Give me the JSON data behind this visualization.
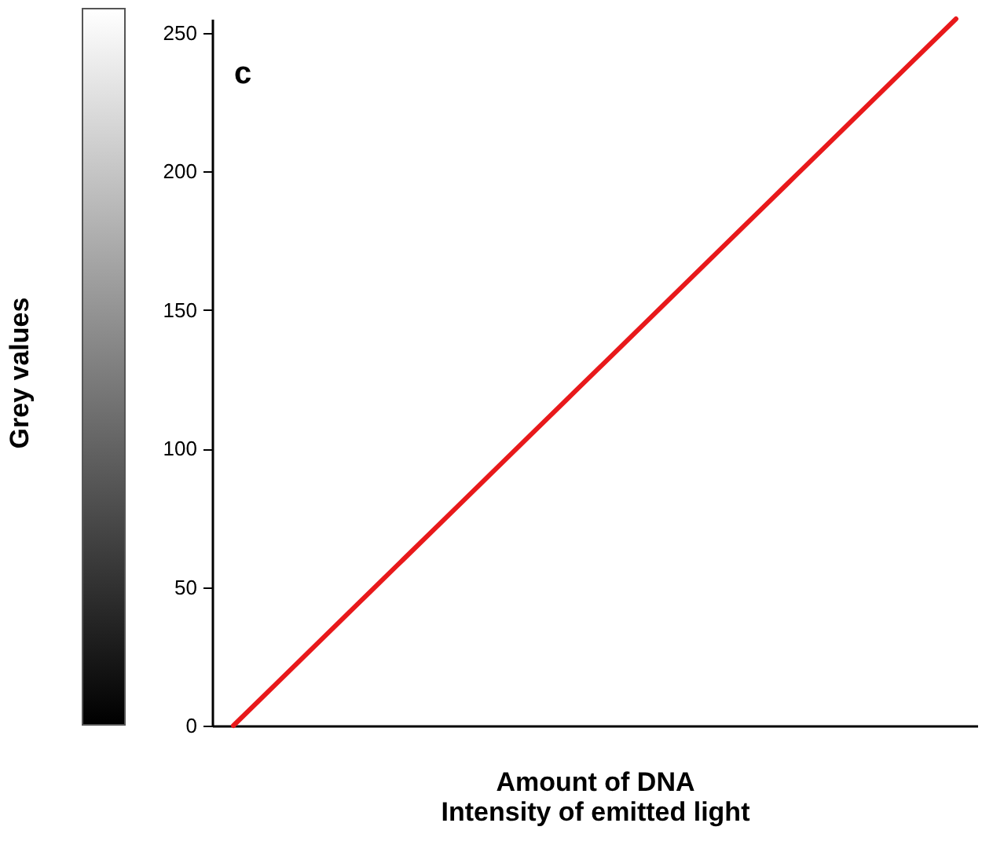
{
  "chart_data": {
    "type": "line",
    "xlabel": "Amount of DNA\nIntensity of emitted light",
    "ylabel": "Grey values",
    "annotations": [
      "c"
    ],
    "categories": [
      null,
      null,
      null,
      null,
      null,
      null,
      null,
      null,
      null,
      null,
      null,
      null,
      null,
      null,
      null,
      null,
      null,
      null
    ],
    "series": [
      {
        "color": "#e8191b",
        "values": [
          0,
          15,
          30,
          45,
          60,
          75,
          90,
          105,
          120,
          135,
          150,
          165,
          180,
          195,
          210,
          225,
          240,
          255
        ]
      }
    ],
    "ylim": [
      0,
      255
    ],
    "yticks": [
      0,
      50,
      100,
      150,
      200,
      250
    ],
    "grid": false,
    "tick_labels": "y",
    "marker": "none",
    "line_style": "solid"
  }
}
